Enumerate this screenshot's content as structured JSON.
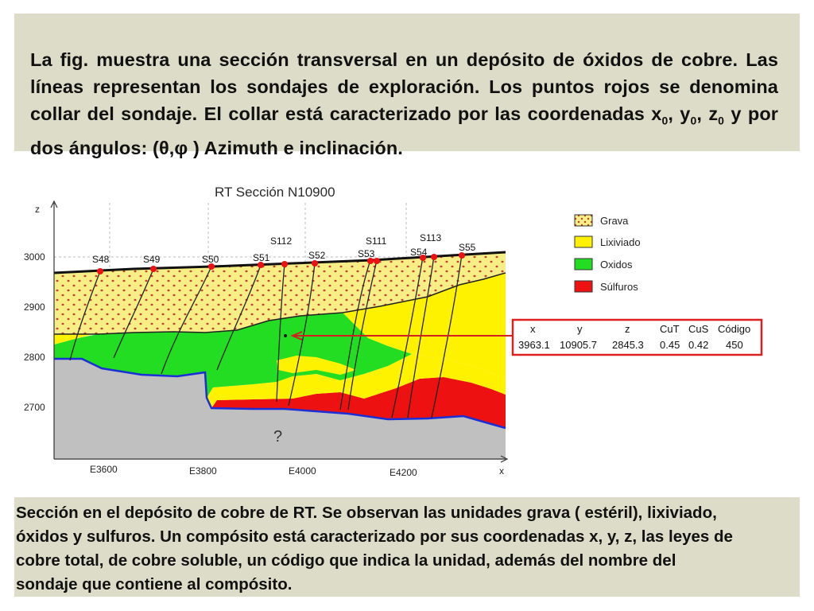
{
  "top": {
    "line1": "La fig. muestra una sección transversal en un depósito de óxidos de cobre.",
    "line2": "Las líneas representan los sondajes de exploración. Los puntos rojos se",
    "line3": "denomina collar del sondaje. El collar está caracterizado por las",
    "line4_a": "coordenadas x",
    "sub0": "0",
    "comma1": ", y",
    "comma2": ", z",
    "line4_b": "  y por dos ángulos: (θ,φ ) Azimuth e inclinación."
  },
  "figure": {
    "title": "RT Sección N10900",
    "z_axis": "z",
    "x_axis": "x",
    "z_ticks": [
      "3000",
      "2900",
      "2800",
      "2700"
    ],
    "x_ticks": [
      "E3600",
      "E3800",
      "E4000",
      "E4200"
    ],
    "drillholes": [
      "S48",
      "S49",
      "S50",
      "S51",
      "S112",
      "S52",
      "S111",
      "S53",
      "S113",
      "S54",
      "S55"
    ],
    "unknown": "?",
    "legend": [
      {
        "label": "Grava",
        "color": "#f5ee8a"
      },
      {
        "label": "Lixiviado",
        "color": "#fff200"
      },
      {
        "label": "Oxidos",
        "color": "#22dd22"
      },
      {
        "label": "Súlfuros",
        "color": "#ee1111"
      }
    ],
    "table": {
      "headers": [
        "x",
        "y",
        "z",
        "CuT",
        "CuS",
        "Código"
      ],
      "values": [
        "3963.1",
        "10905.7",
        "2845.3",
        "0.45",
        "0.42",
        "450"
      ]
    }
  },
  "bottom": {
    "line1": "Sección en el depósito de cobre de RT. Se observan las unidades grava ( estéril), lixiviado,",
    "line2": "óxidos y sulfuros. Un compósito está caracterizado por sus coordenadas x, y, z, las leyes de",
    "line3": "cobre total, de cobre soluble, un código que indica la unidad, además del nombre del",
    "line4": "sondaje que contiene al compósito."
  }
}
